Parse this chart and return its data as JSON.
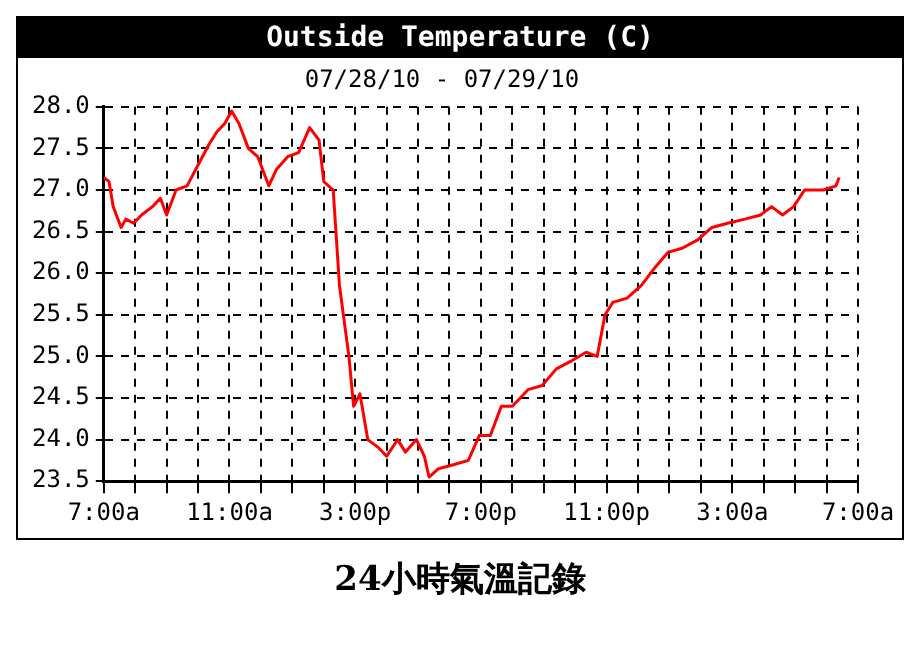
{
  "chart_data": {
    "type": "line",
    "title": "Outside Temperature (C)",
    "subtitle": "07/28/10 - 07/29/10",
    "annotations": [
      "24小時氣溫記錄"
    ],
    "series": [
      {
        "color": "#ff0000",
        "x": [
          "--07-28T07:00",
          "--07-28T07:10",
          "--07-28T07:18",
          "--07-28T07:33",
          "--07-28T07:42",
          "--07-28T07:57",
          "--07-28T08:12",
          "--07-28T08:33",
          "--07-28T08:48",
          "--07-28T09:00",
          "--07-28T09:18",
          "--07-28T09:39",
          "--07-28T10:00",
          "--07-28T10:21",
          "--07-28T10:36",
          "--07-28T10:51",
          "--07-28T11:04",
          "--07-28T11:18",
          "--07-28T11:36",
          "--07-28T11:54",
          "--07-28T12:15",
          "--07-28T12:30",
          "--07-28T12:51",
          "--07-28T13:12",
          "--07-28T13:33",
          "--07-28T13:51",
          "--07-28T14:00",
          "--07-28T14:18",
          "--07-28T14:30",
          "--07-28T14:48",
          "--07-28T14:57",
          "--07-28T15:09",
          "--07-28T15:24",
          "--07-28T15:45",
          "--07-28T16:00",
          "--07-28T16:21",
          "--07-28T16:36",
          "--07-28T16:57",
          "--07-28T17:12",
          "--07-28T17:21",
          "--07-28T17:39",
          "--07-28T18:09",
          "--07-28T18:36",
          "--07-28T18:57",
          "--07-28T19:18",
          "--07-28T19:39",
          "--07-28T20:00",
          "--07-28T20:30",
          "--07-28T20:57",
          "--07-28T21:24",
          "--07-28T21:54",
          "--07-28T22:21",
          "--07-28T22:42",
          "--07-28T22:57",
          "--07-28T23:12",
          "--07-28T23:39",
          "--07-29T00:06",
          "--07-29T00:30",
          "--07-29T00:57",
          "--07-29T01:24",
          "--07-29T01:54",
          "--07-29T02:21",
          "--07-29T02:51",
          "--07-29T03:24",
          "--07-29T03:54",
          "--07-29T04:15",
          "--07-29T04:36",
          "--07-29T04:57",
          "--07-29T05:18",
          "--07-29T05:54",
          "--07-29T06:18",
          "--07-29T06:24"
        ],
        "values": [
          27.15,
          27.1,
          26.8,
          26.55,
          26.65,
          26.6,
          26.7,
          26.8,
          26.9,
          26.7,
          27.0,
          27.05,
          27.3,
          27.55,
          27.7,
          27.8,
          27.95,
          27.8,
          27.5,
          27.4,
          27.05,
          27.25,
          27.4,
          27.45,
          27.75,
          27.6,
          27.1,
          27.0,
          25.85,
          25.0,
          24.4,
          24.55,
          24.0,
          23.9,
          23.8,
          24.0,
          23.85,
          24.0,
          23.8,
          23.55,
          23.65,
          23.7,
          23.75,
          24.05,
          24.05,
          24.4,
          24.4,
          24.6,
          24.65,
          24.85,
          24.95,
          25.05,
          25.0,
          25.5,
          25.65,
          25.7,
          25.85,
          26.05,
          26.25,
          26.3,
          26.4,
          26.55,
          26.6,
          26.65,
          26.7,
          26.8,
          26.7,
          26.8,
          27.0,
          27.0,
          27.05,
          27.15
        ]
      }
    ],
    "xlim": [
      "--07-28T07:00",
      "--07-29T07:00"
    ],
    "xticks": [
      {
        "value": "--07-28T07:00",
        "label": "7:00a"
      },
      {
        "value": "--07-28T08:00",
        "label": null
      },
      {
        "value": "--07-28T09:00",
        "label": null
      },
      {
        "value": "--07-28T10:00",
        "label": null
      },
      {
        "value": "--07-28T11:00",
        "label": "11:00a"
      },
      {
        "value": "--07-28T12:00",
        "label": null
      },
      {
        "value": "--07-28T13:00",
        "label": null
      },
      {
        "value": "--07-28T14:00",
        "label": null
      },
      {
        "value": "--07-28T15:00",
        "label": "3:00p"
      },
      {
        "value": "--07-28T16:00",
        "label": null
      },
      {
        "value": "--07-28T17:00",
        "label": null
      },
      {
        "value": "--07-28T18:00",
        "label": null
      },
      {
        "value": "--07-28T19:00",
        "label": "7:00p"
      },
      {
        "value": "--07-28T20:00",
        "label": null
      },
      {
        "value": "--07-28T21:00",
        "label": null
      },
      {
        "value": "--07-28T22:00",
        "label": null
      },
      {
        "value": "--07-28T23:00",
        "label": "11:00p"
      },
      {
        "value": "--07-29T00:00",
        "label": null
      },
      {
        "value": "--07-29T01:00",
        "label": null
      },
      {
        "value": "--07-29T02:00",
        "label": null
      },
      {
        "value": "--07-29T03:00",
        "label": "3:00a"
      },
      {
        "value": "--07-29T04:00",
        "label": null
      },
      {
        "value": "--07-29T05:00",
        "label": null
      },
      {
        "value": "--07-29T06:00",
        "label": null
      },
      {
        "value": "--07-29T07:00",
        "label": "7:00a"
      }
    ],
    "ylim": [
      23.5,
      28.0
    ],
    "yticks": [
      {
        "value": 23.5,
        "label": "23.5"
      },
      {
        "value": 24,
        "label": "24.0"
      },
      {
        "value": 24.5,
        "label": "24.5"
      },
      {
        "value": 25,
        "label": "25.0"
      },
      {
        "value": 25.5,
        "label": "25.5"
      },
      {
        "value": 26,
        "label": "26.0"
      },
      {
        "value": 26.5,
        "label": "26.5"
      },
      {
        "value": 27,
        "label": "27.0"
      },
      {
        "value": 27.5,
        "label": "27.5"
      },
      {
        "value": 28,
        "label": "28.0"
      }
    ],
    "grid": true,
    "legend": false,
    "marker": "none",
    "line_style": "solid"
  }
}
